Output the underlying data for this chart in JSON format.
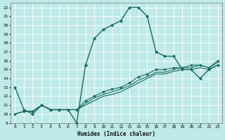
{
  "background_color": "#beeae8",
  "grid_color": "#ffffff",
  "line_color": "#1a6b60",
  "xlabel": "Humidex (Indice chaleur)",
  "xlim": [
    -0.5,
    23.5
  ],
  "ylim": [
    9,
    22.5
  ],
  "xticks": [
    0,
    1,
    2,
    3,
    4,
    5,
    6,
    7,
    8,
    9,
    10,
    11,
    12,
    13,
    14,
    15,
    16,
    17,
    18,
    19,
    20,
    21,
    22,
    23
  ],
  "yticks": [
    9,
    10,
    11,
    12,
    13,
    14,
    15,
    16,
    17,
    18,
    19,
    20,
    21,
    22
  ],
  "series": [
    {
      "x": [
        0,
        1,
        2,
        3,
        4,
        5,
        6,
        7,
        8
      ],
      "y": [
        13,
        10.5,
        10,
        11,
        10.5,
        10.5,
        10.5,
        9,
        15.5
      ],
      "marker": "D",
      "markersize": 2.0,
      "linewidth": 1.0
    },
    {
      "x": [
        8,
        9,
        10,
        11,
        12,
        13,
        14,
        15,
        16,
        17,
        18,
        19,
        20,
        21,
        22,
        23
      ],
      "y": [
        15.5,
        18.5,
        19.5,
        20,
        20.5,
        22,
        22,
        21,
        17,
        16.5,
        16.5,
        15,
        15,
        14,
        15,
        15.5
      ],
      "marker": "D",
      "markersize": 2.0,
      "linewidth": 1.0
    },
    {
      "x": [
        0,
        1,
        2,
        3,
        4,
        5,
        6,
        7,
        8,
        9,
        10,
        11,
        12,
        13,
        14,
        15,
        16,
        17,
        18,
        19,
        20,
        21,
        22,
        23
      ],
      "y": [
        10,
        10.3,
        10.3,
        11,
        10.5,
        10.5,
        10.5,
        10.5,
        11,
        11.5,
        12,
        12.2,
        12.5,
        13,
        13.5,
        14,
        14.5,
        14.5,
        14.8,
        15,
        15,
        15.2,
        15,
        15.5
      ],
      "marker": null,
      "linewidth": 0.8
    },
    {
      "x": [
        0,
        1,
        2,
        3,
        4,
        5,
        6,
        7,
        8,
        9,
        10,
        11,
        12,
        13,
        14,
        15,
        16,
        17,
        18,
        19,
        20,
        21,
        22,
        23
      ],
      "y": [
        10,
        10.3,
        10.3,
        11,
        10.5,
        10.5,
        10.5,
        10.5,
        11.2,
        11.8,
        12.2,
        12.5,
        12.8,
        13.2,
        13.8,
        14.2,
        14.7,
        14.7,
        15,
        15.2,
        15.2,
        15.5,
        15.2,
        15.8
      ],
      "marker": null,
      "linewidth": 0.8
    },
    {
      "x": [
        0,
        1,
        2,
        3,
        4,
        5,
        6,
        7,
        8,
        9,
        10,
        11,
        12,
        13,
        14,
        15,
        16,
        17,
        18,
        19,
        20,
        21,
        22,
        23
      ],
      "y": [
        10,
        10.3,
        10.3,
        11,
        10.5,
        10.5,
        10.5,
        10.5,
        11.5,
        12,
        12.5,
        12.8,
        13,
        13.5,
        14.2,
        14.5,
        15,
        15,
        15.2,
        15.2,
        15.5,
        15.5,
        15.2,
        16
      ],
      "marker": "D",
      "markersize": 1.8,
      "linewidth": 0.8
    }
  ]
}
